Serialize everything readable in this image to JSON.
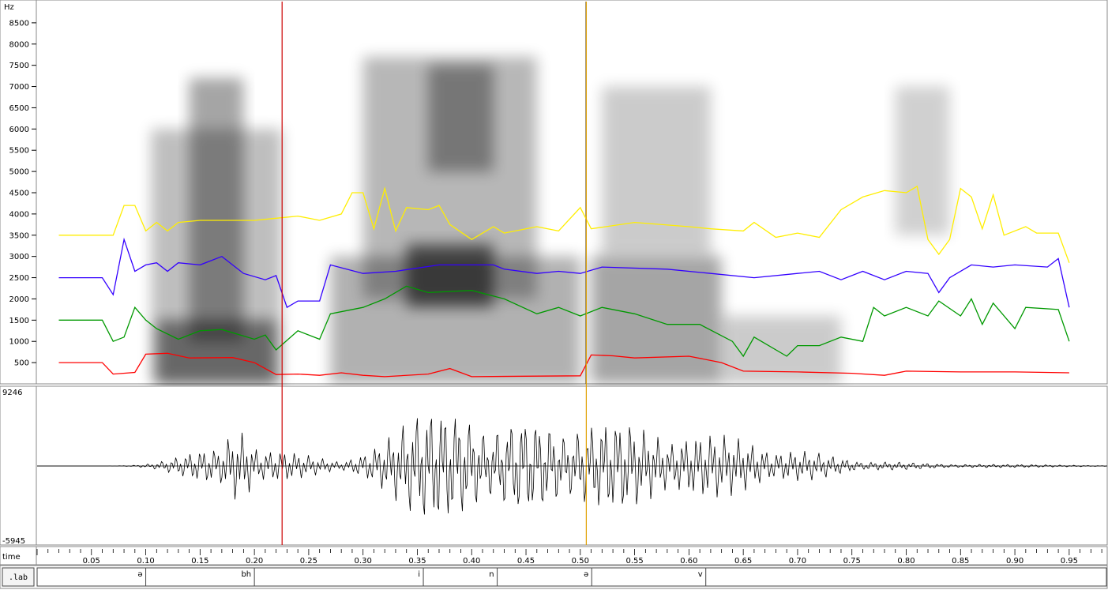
{
  "chart_data": {
    "type": "line",
    "spectrogram": {
      "y_unit": "Hz",
      "y_ticks": [
        500,
        1000,
        1500,
        2000,
        2500,
        3000,
        3500,
        4000,
        4500,
        5000,
        5500,
        6000,
        6500,
        7000,
        7500,
        8000,
        8500
      ],
      "ylim": [
        0,
        9000
      ],
      "series": [
        {
          "color": "#ff0000",
          "points": [
            [
              0.02,
              500
            ],
            [
              0.06,
              500
            ],
            [
              0.07,
              230
            ],
            [
              0.09,
              270
            ],
            [
              0.1,
              700
            ],
            [
              0.12,
              720
            ],
            [
              0.14,
              610
            ],
            [
              0.18,
              620
            ],
            [
              0.2,
              500
            ],
            [
              0.22,
              220
            ],
            [
              0.24,
              230
            ],
            [
              0.26,
              200
            ],
            [
              0.28,
              260
            ],
            [
              0.3,
              200
            ],
            [
              0.32,
              170
            ],
            [
              0.36,
              230
            ],
            [
              0.38,
              360
            ],
            [
              0.4,
              170
            ],
            [
              0.45,
              180
            ],
            [
              0.5,
              190
            ],
            [
              0.51,
              680
            ],
            [
              0.53,
              660
            ],
            [
              0.55,
              610
            ],
            [
              0.6,
              650
            ],
            [
              0.63,
              500
            ],
            [
              0.65,
              300
            ],
            [
              0.7,
              280
            ],
            [
              0.75,
              250
            ],
            [
              0.78,
              200
            ],
            [
              0.8,
              300
            ],
            [
              0.85,
              280
            ],
            [
              0.9,
              280
            ],
            [
              0.95,
              260
            ]
          ]
        },
        {
          "color": "#009900",
          "points": [
            [
              0.02,
              1500
            ],
            [
              0.06,
              1500
            ],
            [
              0.07,
              1000
            ],
            [
              0.08,
              1100
            ],
            [
              0.09,
              1800
            ],
            [
              0.1,
              1500
            ],
            [
              0.11,
              1300
            ],
            [
              0.13,
              1050
            ],
            [
              0.15,
              1250
            ],
            [
              0.17,
              1280
            ],
            [
              0.2,
              1050
            ],
            [
              0.21,
              1150
            ],
            [
              0.22,
              800
            ],
            [
              0.24,
              1250
            ],
            [
              0.26,
              1050
            ],
            [
              0.27,
              1650
            ],
            [
              0.3,
              1800
            ],
            [
              0.32,
              2000
            ],
            [
              0.34,
              2300
            ],
            [
              0.36,
              2150
            ],
            [
              0.4,
              2200
            ],
            [
              0.43,
              2000
            ],
            [
              0.46,
              1650
            ],
            [
              0.48,
              1800
            ],
            [
              0.5,
              1600
            ],
            [
              0.52,
              1800
            ],
            [
              0.55,
              1650
            ],
            [
              0.58,
              1400
            ],
            [
              0.61,
              1400
            ],
            [
              0.64,
              1000
            ],
            [
              0.65,
              650
            ],
            [
              0.66,
              1100
            ],
            [
              0.69,
              650
            ],
            [
              0.7,
              900
            ],
            [
              0.72,
              900
            ],
            [
              0.74,
              1100
            ],
            [
              0.76,
              1000
            ],
            [
              0.77,
              1800
            ],
            [
              0.78,
              1600
            ],
            [
              0.8,
              1800
            ],
            [
              0.82,
              1600
            ],
            [
              0.83,
              1950
            ],
            [
              0.85,
              1600
            ],
            [
              0.86,
              2000
            ],
            [
              0.87,
              1400
            ],
            [
              0.88,
              1900
            ],
            [
              0.9,
              1300
            ],
            [
              0.91,
              1800
            ],
            [
              0.94,
              1750
            ],
            [
              0.95,
              1000
            ]
          ]
        },
        {
          "color": "#3300ff",
          "points": [
            [
              0.02,
              2500
            ],
            [
              0.06,
              2500
            ],
            [
              0.07,
              2100
            ],
            [
              0.08,
              3400
            ],
            [
              0.09,
              2650
            ],
            [
              0.1,
              2800
            ],
            [
              0.11,
              2850
            ],
            [
              0.12,
              2650
            ],
            [
              0.13,
              2850
            ],
            [
              0.15,
              2800
            ],
            [
              0.17,
              3000
            ],
            [
              0.19,
              2600
            ],
            [
              0.21,
              2450
            ],
            [
              0.22,
              2550
            ],
            [
              0.23,
              1800
            ],
            [
              0.24,
              1950
            ],
            [
              0.26,
              1950
            ],
            [
              0.27,
              2800
            ],
            [
              0.3,
              2600
            ],
            [
              0.33,
              2650
            ],
            [
              0.37,
              2800
            ],
            [
              0.42,
              2800
            ],
            [
              0.43,
              2700
            ],
            [
              0.46,
              2600
            ],
            [
              0.48,
              2650
            ],
            [
              0.5,
              2600
            ],
            [
              0.52,
              2750
            ],
            [
              0.58,
              2700
            ],
            [
              0.62,
              2600
            ],
            [
              0.66,
              2500
            ],
            [
              0.7,
              2600
            ],
            [
              0.72,
              2650
            ],
            [
              0.74,
              2450
            ],
            [
              0.76,
              2650
            ],
            [
              0.78,
              2450
            ],
            [
              0.8,
              2650
            ],
            [
              0.82,
              2600
            ],
            [
              0.83,
              2150
            ],
            [
              0.84,
              2500
            ],
            [
              0.86,
              2800
            ],
            [
              0.88,
              2750
            ],
            [
              0.9,
              2800
            ],
            [
              0.93,
              2750
            ],
            [
              0.94,
              2950
            ],
            [
              0.95,
              1800
            ]
          ]
        },
        {
          "color": "#ffee00",
          "points": [
            [
              0.02,
              3500
            ],
            [
              0.06,
              3500
            ],
            [
              0.07,
              3500
            ],
            [
              0.08,
              4200
            ],
            [
              0.09,
              4200
            ],
            [
              0.1,
              3600
            ],
            [
              0.11,
              3800
            ],
            [
              0.12,
              3600
            ],
            [
              0.13,
              3800
            ],
            [
              0.15,
              3850
            ],
            [
              0.2,
              3850
            ],
            [
              0.22,
              3900
            ],
            [
              0.24,
              3950
            ],
            [
              0.26,
              3850
            ],
            [
              0.28,
              4000
            ],
            [
              0.29,
              4500
            ],
            [
              0.3,
              4500
            ],
            [
              0.31,
              3650
            ],
            [
              0.32,
              4600
            ],
            [
              0.33,
              3600
            ],
            [
              0.34,
              4150
            ],
            [
              0.36,
              4100
            ],
            [
              0.37,
              4200
            ],
            [
              0.38,
              3750
            ],
            [
              0.4,
              3400
            ],
            [
              0.42,
              3700
            ],
            [
              0.43,
              3550
            ],
            [
              0.46,
              3700
            ],
            [
              0.48,
              3600
            ],
            [
              0.5,
              4150
            ],
            [
              0.51,
              3650
            ],
            [
              0.55,
              3800
            ],
            [
              0.6,
              3700
            ],
            [
              0.62,
              3650
            ],
            [
              0.65,
              3600
            ],
            [
              0.66,
              3800
            ],
            [
              0.68,
              3450
            ],
            [
              0.7,
              3550
            ],
            [
              0.72,
              3450
            ],
            [
              0.74,
              4100
            ],
            [
              0.76,
              4400
            ],
            [
              0.78,
              4550
            ],
            [
              0.8,
              4500
            ],
            [
              0.81,
              4650
            ],
            [
              0.82,
              3400
            ],
            [
              0.83,
              3050
            ],
            [
              0.84,
              3400
            ],
            [
              0.85,
              4600
            ],
            [
              0.86,
              4400
            ],
            [
              0.87,
              3650
            ],
            [
              0.88,
              4450
            ],
            [
              0.89,
              3500
            ],
            [
              0.91,
              3700
            ],
            [
              0.92,
              3550
            ],
            [
              0.93,
              3550
            ],
            [
              0.94,
              3550
            ],
            [
              0.95,
              2850
            ]
          ]
        }
      ]
    },
    "waveform": {
      "ymax_label": "9246",
      "ymin_label": "-5945"
    },
    "time_axis": {
      "label": "time",
      "tick_labels": [
        "0.05",
        "0.10",
        "0.15",
        "0.20",
        "0.25",
        "0.30",
        "0.35",
        "0.40",
        "0.45",
        "0.50",
        "0.55",
        "0.60",
        "0.65",
        "0.70",
        "0.75",
        "0.80",
        "0.85",
        "0.90",
        "0.95"
      ],
      "xlim": [
        0.0,
        0.985
      ]
    },
    "cursors": [
      {
        "time": 0.2255,
        "color": "#cc0000"
      },
      {
        "time": 0.5055,
        "color": "#e0a000"
      }
    ],
    "label_tier": {
      "name": ".lab",
      "segments": [
        {
          "label": "ə",
          "end": 0.1
        },
        {
          "label": "bh",
          "end": 0.2
        },
        {
          "label": "i",
          "end": 0.3555
        },
        {
          "label": "n",
          "end": 0.4235
        },
        {
          "label": "ə",
          "end": 0.5105
        },
        {
          "label": "v",
          "end": 0.6155
        }
      ]
    }
  }
}
